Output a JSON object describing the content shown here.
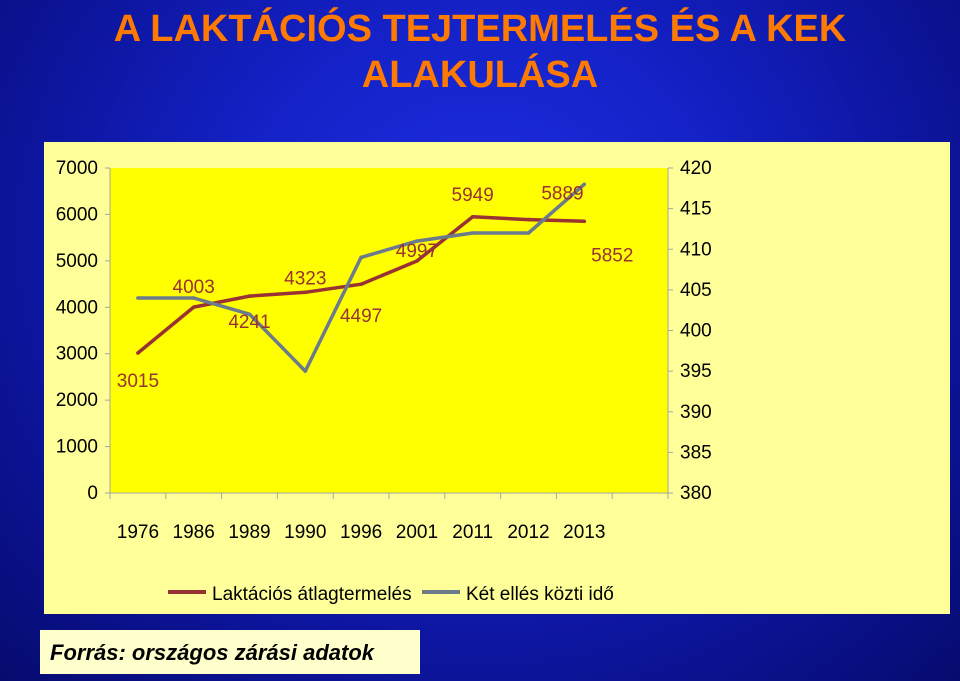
{
  "slide": {
    "title": "A LAKTÁCIÓS TEJTERMELÉS ÉS A KEK ALAKULÁSA",
    "source": "Forrás: országos zárási adatok"
  },
  "chart_data": {
    "type": "line",
    "categories": [
      "1976",
      "1986",
      "1989",
      "1990",
      "1996",
      "2001",
      "2011",
      "2012",
      "2013"
    ],
    "y_left": {
      "ticks": [
        0,
        1000,
        2000,
        3000,
        4000,
        5000,
        6000,
        7000
      ],
      "ylim": [
        0,
        7000
      ]
    },
    "y_right": {
      "ticks": [
        380,
        385,
        390,
        395,
        400,
        405,
        410,
        415,
        420
      ],
      "ylim": [
        380,
        420
      ]
    },
    "grid": false,
    "legend_position": "bottom",
    "series": [
      {
        "name": "Laktációs átlagtermelés",
        "axis": "left",
        "color": "#993333",
        "values": [
          3015,
          4003,
          4241,
          4323,
          4497,
          4997,
          5949,
          5889,
          5852
        ],
        "labels": [
          "3015",
          "4003",
          "4241",
          "4323",
          "4497",
          "4997",
          "5949",
          "5889",
          "5852"
        ]
      },
      {
        "name": "Két ellés közti idő",
        "axis": "right",
        "color": "#6b7b8c",
        "values": [
          404,
          404,
          402,
          395,
          409,
          411,
          412,
          412,
          418
        ]
      }
    ]
  }
}
